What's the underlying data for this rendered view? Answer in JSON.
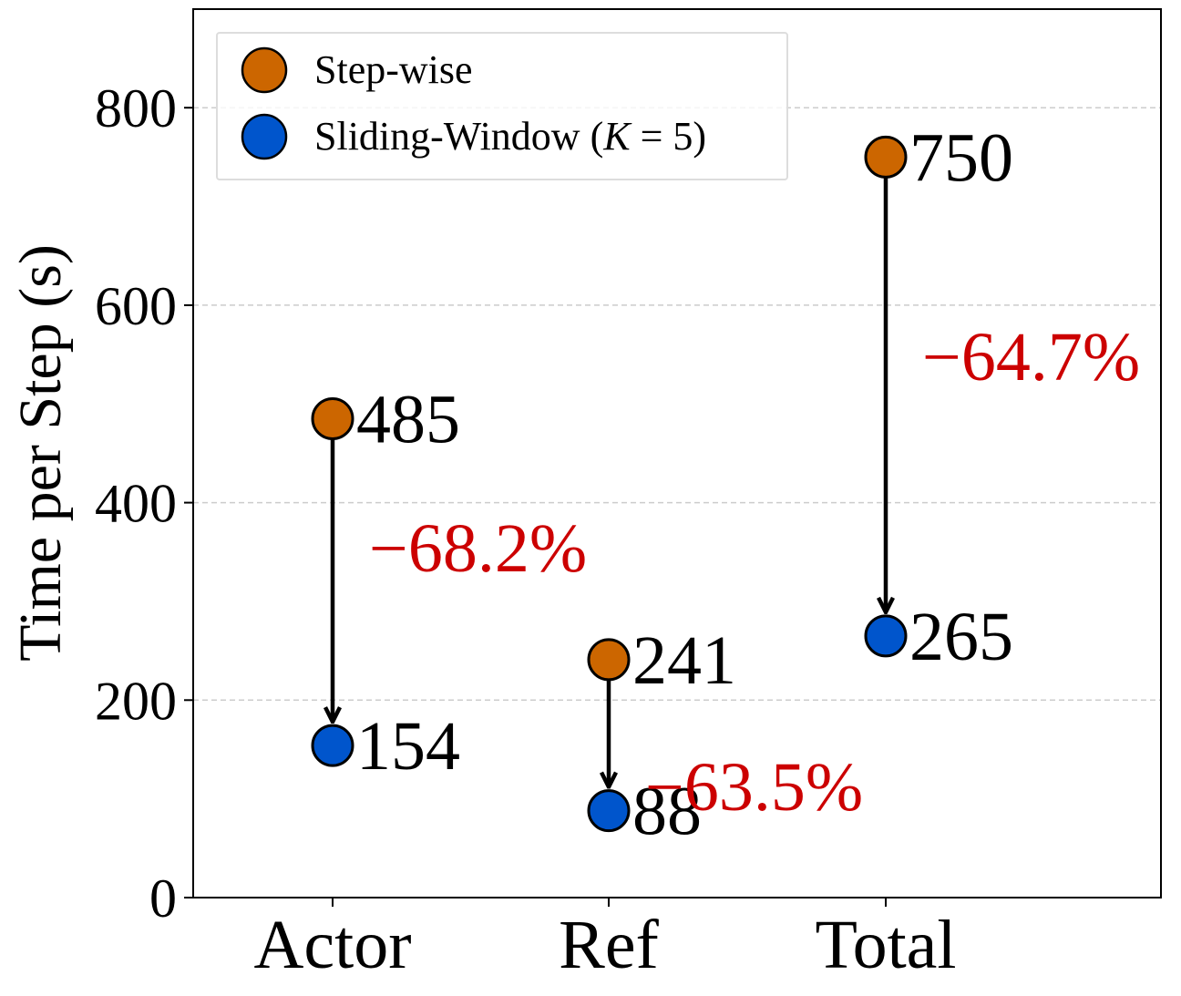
{
  "chart_data": {
    "type": "scatter",
    "categories": [
      "Actor",
      "Ref",
      "Total"
    ],
    "ylabel": "Time per Step (s)",
    "xlabel": "",
    "ylim": [
      0,
      900
    ],
    "yticks": [
      0,
      200,
      400,
      600,
      800
    ],
    "grid": "horizontal dashed",
    "legend_position": "top-left",
    "series": [
      {
        "name": "Step-wise",
        "color": "#CC6600",
        "values": [
          485,
          241,
          750
        ]
      },
      {
        "name": "Sliding-Window",
        "name_suffix_open": " (",
        "name_k": "K",
        "name_eq": " = 5)",
        "color": "#0055CC",
        "values": [
          154,
          88,
          265
        ]
      }
    ],
    "value_labels": {
      "step": [
        "485",
        "241",
        "750"
      ],
      "window": [
        "154",
        "88",
        "265"
      ]
    },
    "reductions": [
      "−68.2%",
      "−63.5%",
      "−64.7%"
    ],
    "reduction_color": "#CC0000"
  }
}
